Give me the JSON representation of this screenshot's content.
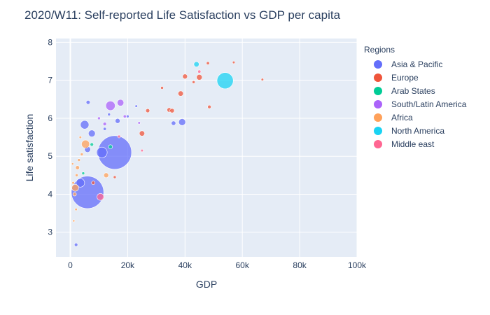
{
  "chart_data": {
    "type": "scatter",
    "title": "2020/W11: Self-reported Life Satisfaction vs GDP per capita",
    "xlabel": "GDP",
    "ylabel": "Life satisfaction",
    "xlim": [
      -5000,
      100000
    ],
    "ylim": [
      2.35,
      8.1
    ],
    "x_ticks": [
      0,
      20000,
      40000,
      60000,
      80000,
      100000
    ],
    "x_tick_labels": [
      "0",
      "20k",
      "40k",
      "60k",
      "80k",
      "100k"
    ],
    "y_ticks": [
      3,
      4,
      5,
      6,
      7,
      8
    ],
    "y_tick_labels": [
      "3",
      "4",
      "5",
      "6",
      "7",
      "8"
    ],
    "grid": true,
    "legend_title": "Regions",
    "legend_position": "right",
    "series": [
      {
        "name": "Asia & Pacific",
        "color": "#636efa",
        "points": [
          {
            "x": 6000,
            "y": 4.05,
            "size": 1300
          },
          {
            "x": 15500,
            "y": 5.1,
            "size": 1400
          },
          {
            "x": 5000,
            "y": 5.83,
            "size": 90
          },
          {
            "x": 7500,
            "y": 5.6,
            "size": 60
          },
          {
            "x": 11000,
            "y": 5.1,
            "size": 140
          },
          {
            "x": 3500,
            "y": 4.3,
            "size": 90
          },
          {
            "x": 6000,
            "y": 5.18,
            "size": 45
          },
          {
            "x": 16500,
            "y": 5.93,
            "size": 30
          },
          {
            "x": 39000,
            "y": 5.9,
            "size": 60
          },
          {
            "x": 36000,
            "y": 5.87,
            "size": 25
          },
          {
            "x": 6200,
            "y": 6.42,
            "size": 20
          },
          {
            "x": 2000,
            "y": 2.67,
            "size": 15
          },
          {
            "x": 12000,
            "y": 5.72,
            "size": 12
          },
          {
            "x": 13500,
            "y": 6.1,
            "size": 10
          },
          {
            "x": 20000,
            "y": 6.05,
            "size": 10
          },
          {
            "x": 23000,
            "y": 6.32,
            "size": 8
          }
        ]
      },
      {
        "name": "Europe",
        "color": "#ef553b",
        "points": [
          {
            "x": 45000,
            "y": 7.08,
            "size": 40
          },
          {
            "x": 40000,
            "y": 7.1,
            "size": 30
          },
          {
            "x": 38500,
            "y": 6.65,
            "size": 35
          },
          {
            "x": 34500,
            "y": 6.22,
            "size": 25
          },
          {
            "x": 35500,
            "y": 6.2,
            "size": 25
          },
          {
            "x": 25000,
            "y": 5.6,
            "size": 35
          },
          {
            "x": 27000,
            "y": 6.2,
            "size": 20
          },
          {
            "x": 48500,
            "y": 6.3,
            "size": 15
          },
          {
            "x": 48000,
            "y": 7.45,
            "size": 12
          },
          {
            "x": 43000,
            "y": 6.95,
            "size": 10
          },
          {
            "x": 32000,
            "y": 6.8,
            "size": 10
          },
          {
            "x": 15500,
            "y": 4.45,
            "size": 10
          },
          {
            "x": 8000,
            "y": 4.3,
            "size": 15
          },
          {
            "x": 67000,
            "y": 7.02,
            "size": 8
          },
          {
            "x": 57000,
            "y": 7.47,
            "size": 8
          }
        ]
      },
      {
        "name": "Arab States",
        "color": "#00cc96",
        "points": [
          {
            "x": 14000,
            "y": 5.25,
            "size": 20
          },
          {
            "x": 7500,
            "y": 5.31,
            "size": 15
          },
          {
            "x": 4500,
            "y": 4.55,
            "size": 10
          }
        ]
      },
      {
        "name": "South/Latin America",
        "color": "#ab63fa",
        "points": [
          {
            "x": 14000,
            "y": 6.33,
            "size": 110
          },
          {
            "x": 17500,
            "y": 6.41,
            "size": 55
          },
          {
            "x": 12000,
            "y": 5.85,
            "size": 15
          },
          {
            "x": 19000,
            "y": 6.05,
            "size": 12
          },
          {
            "x": 10000,
            "y": 6.0,
            "size": 10
          },
          {
            "x": 24000,
            "y": 5.88,
            "size": 8
          }
        ]
      },
      {
        "name": "Africa",
        "color": "#ffa15a",
        "points": [
          {
            "x": 5300,
            "y": 5.32,
            "size": 80
          },
          {
            "x": 1700,
            "y": 4.17,
            "size": 60
          },
          {
            "x": 12500,
            "y": 4.5,
            "size": 30
          },
          {
            "x": 2500,
            "y": 4.7,
            "size": 20
          },
          {
            "x": 1500,
            "y": 4.0,
            "size": 15
          },
          {
            "x": 3000,
            "y": 4.9,
            "size": 10
          },
          {
            "x": 4000,
            "y": 5.05,
            "size": 10
          },
          {
            "x": 1000,
            "y": 4.3,
            "size": 8
          },
          {
            "x": 2000,
            "y": 3.6,
            "size": 8
          },
          {
            "x": 1200,
            "y": 3.3,
            "size": 6
          },
          {
            "x": 800,
            "y": 4.8,
            "size": 6
          },
          {
            "x": 3500,
            "y": 5.5,
            "size": 8
          },
          {
            "x": 2200,
            "y": 4.5,
            "size": 10
          }
        ]
      },
      {
        "name": "North America",
        "color": "#19d3f3",
        "points": [
          {
            "x": 54000,
            "y": 6.99,
            "size": 330
          },
          {
            "x": 44000,
            "y": 7.42,
            "size": 35
          }
        ]
      },
      {
        "name": "Middle east",
        "color": "#ff6692",
        "points": [
          {
            "x": 10500,
            "y": 3.93,
            "size": 60
          },
          {
            "x": 45000,
            "y": 7.23,
            "size": 12
          },
          {
            "x": 17000,
            "y": 5.52,
            "size": 10
          },
          {
            "x": 25000,
            "y": 5.15,
            "size": 8
          }
        ]
      }
    ]
  }
}
